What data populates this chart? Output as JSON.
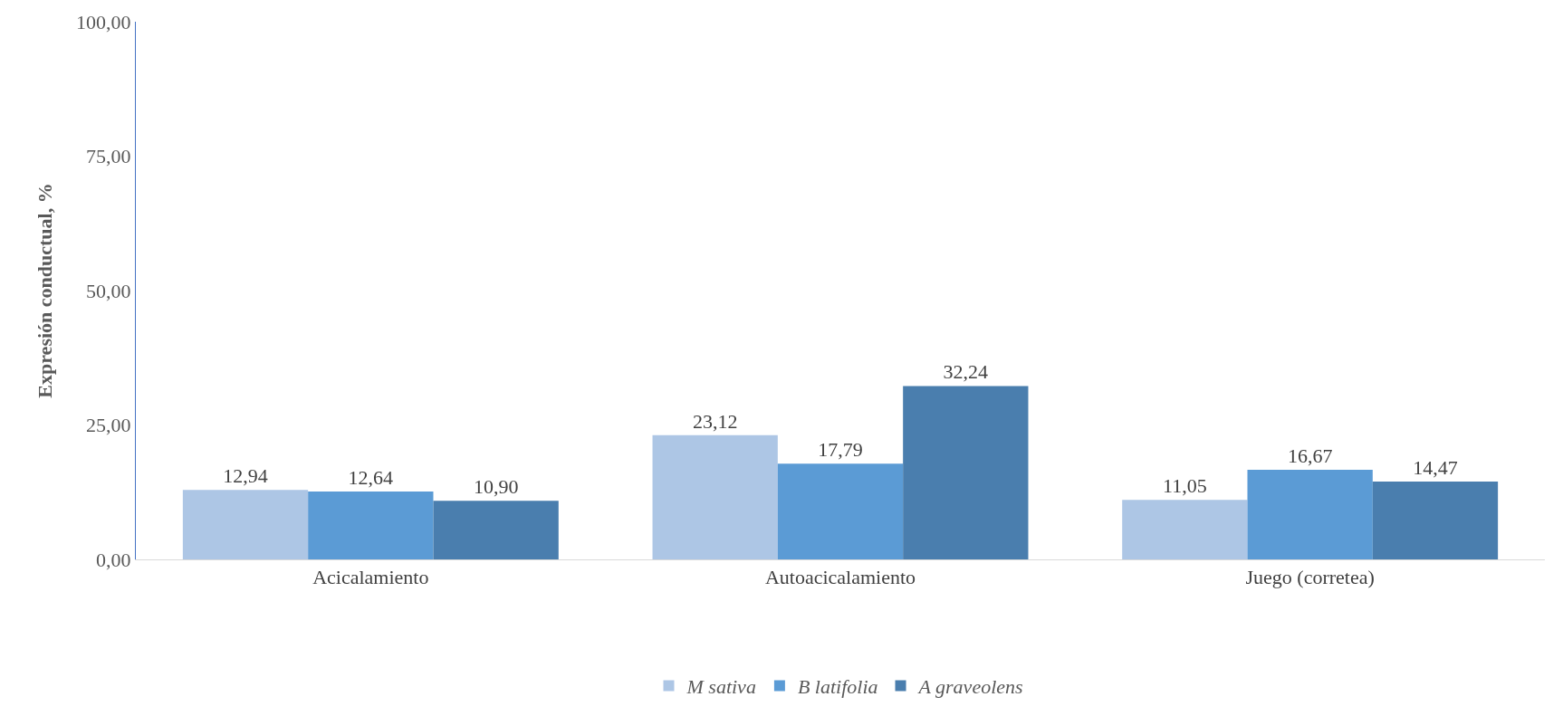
{
  "chart_data": {
    "type": "bar",
    "ylabel": "Expresión conductual, %",
    "categories": [
      "Acicalamiento",
      "Autoacicalamiento",
      "Juego (corretea)"
    ],
    "series": [
      {
        "name": "M sativa",
        "color": "#adc6e5",
        "values": [
          12.94,
          23.12,
          11.05
        ],
        "value_labels": [
          "12,94",
          "23,12",
          "11,05"
        ]
      },
      {
        "name": "B latifolia",
        "color": "#5b9bd5",
        "values": [
          12.64,
          17.79,
          16.67
        ],
        "value_labels": [
          "12,64",
          "17,79",
          "16,67"
        ]
      },
      {
        "name": "A graveolens",
        "color": "#4a7eae",
        "values": [
          10.9,
          32.24,
          14.47
        ],
        "value_labels": [
          "10,90",
          "32,24",
          "14,47"
        ]
      }
    ],
    "ylim": [
      0,
      100
    ],
    "yticks": [
      {
        "value": 0,
        "label": "0,00"
      },
      {
        "value": 25,
        "label": "25,00"
      },
      {
        "value": 50,
        "label": "50,00"
      },
      {
        "value": 75,
        "label": "75,00"
      },
      {
        "value": 100,
        "label": "100,00"
      }
    ],
    "grid": false,
    "legend": "bottom"
  }
}
